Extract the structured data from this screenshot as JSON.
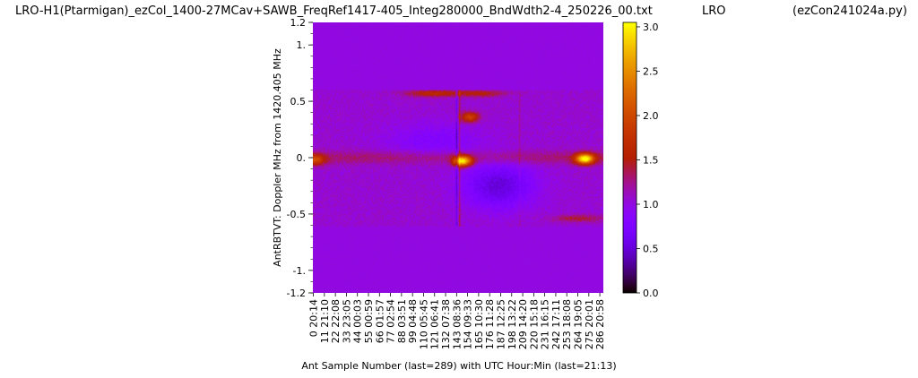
{
  "chart_data": {
    "type": "heatmap",
    "title": "LRO-H1(Ptarmigan)_ezCol_1400-27MCav+SAWB_FreqRef1417-405_Integ280000_BndWdth2-4_250226_00.txt",
    "title_middle": "LRO",
    "title_right": "(ezCon241024a.py)",
    "xlabel": "Ant Sample Number (last=289) with UTC Hour:Min (last=21:13)",
    "ylabel": "AntRBTVT:  Doppler MHz from 1420.405 MHz",
    "xlim": [
      0,
      289
    ],
    "ylim": [
      -1.2,
      1.2
    ],
    "x_ticks": [
      {
        "n": 0,
        "label": "0  20:14"
      },
      {
        "n": 11,
        "label": "11  21:10"
      },
      {
        "n": 22,
        "label": "22  22:08"
      },
      {
        "n": 33,
        "label": "33  23:05"
      },
      {
        "n": 44,
        "label": "44  00:03"
      },
      {
        "n": 55,
        "label": "55  00:59"
      },
      {
        "n": 66,
        "label": "66  01:57"
      },
      {
        "n": 77,
        "label": "77  02:54"
      },
      {
        "n": 88,
        "label": "88  03:51"
      },
      {
        "n": 99,
        "label": "99  04:48"
      },
      {
        "n": 110,
        "label": "110  05:45"
      },
      {
        "n": 121,
        "label": "121  06:41"
      },
      {
        "n": 132,
        "label": "132  07:38"
      },
      {
        "n": 143,
        "label": "143  08:36"
      },
      {
        "n": 154,
        "label": "154  09:33"
      },
      {
        "n": 165,
        "label": "165  10:30"
      },
      {
        "n": 176,
        "label": "176  11:28"
      },
      {
        "n": 187,
        "label": "187  12:25"
      },
      {
        "n": 198,
        "label": "198  13:22"
      },
      {
        "n": 209,
        "label": "209  14:20"
      },
      {
        "n": 220,
        "label": "220  15:18"
      },
      {
        "n": 231,
        "label": "231  16:15"
      },
      {
        "n": 242,
        "label": "242  17:11"
      },
      {
        "n": 253,
        "label": "253  18:08"
      },
      {
        "n": 264,
        "label": "264  19:05"
      },
      {
        "n": 275,
        "label": "275  20:01"
      },
      {
        "n": 286,
        "label": "286  20:58"
      }
    ],
    "y_ticks": [
      {
        "v": 1.2,
        "label": "1.2"
      },
      {
        "v": 1.0,
        "label": "1."
      },
      {
        "v": 0.5,
        "label": "0.5"
      },
      {
        "v": 0.0,
        "label": "0."
      },
      {
        "v": -0.5,
        "label": "-0.5"
      },
      {
        "v": -1.0,
        "label": "-1."
      },
      {
        "v": -1.2,
        "label": "-1.2"
      }
    ],
    "y_minor_step": 0.1,
    "colorbar": {
      "colormap": "gnuplot",
      "range": [
        0.0,
        3.05
      ],
      "ticks": [
        {
          "v": 0.0,
          "label": "0.0"
        },
        {
          "v": 0.5,
          "label": "0.5"
        },
        {
          "v": 1.0,
          "label": "1.0"
        },
        {
          "v": 1.5,
          "label": "1.5"
        },
        {
          "v": 2.0,
          "label": "2.0"
        },
        {
          "v": 2.5,
          "label": "2.5"
        },
        {
          "v": 3.0,
          "label": "3.0"
        }
      ]
    },
    "band_limits_mhz": [
      -0.61,
      0.6
    ],
    "outside_band_value": 1.0,
    "features": [
      {
        "x": 149,
        "y": -0.03,
        "peak": 3.0
      },
      {
        "x": 271,
        "y": -0.01,
        "peak": 3.05
      },
      {
        "x": 2,
        "y": -0.02,
        "peak": 1.9
      },
      {
        "x": 156,
        "y": 0.36,
        "peak": 2.0
      },
      {
        "x": 118,
        "y": 0.57,
        "peak": 1.7
      },
      {
        "x": 165,
        "y": 0.57,
        "peak": 1.6
      },
      {
        "x": 265,
        "y": -0.54,
        "peak": 1.5
      }
    ],
    "vertical_streaks": [
      {
        "x": 143,
        "kind": "dark"
      },
      {
        "x": 146,
        "kind": "bright"
      },
      {
        "x": 206,
        "kind": "light"
      }
    ]
  }
}
